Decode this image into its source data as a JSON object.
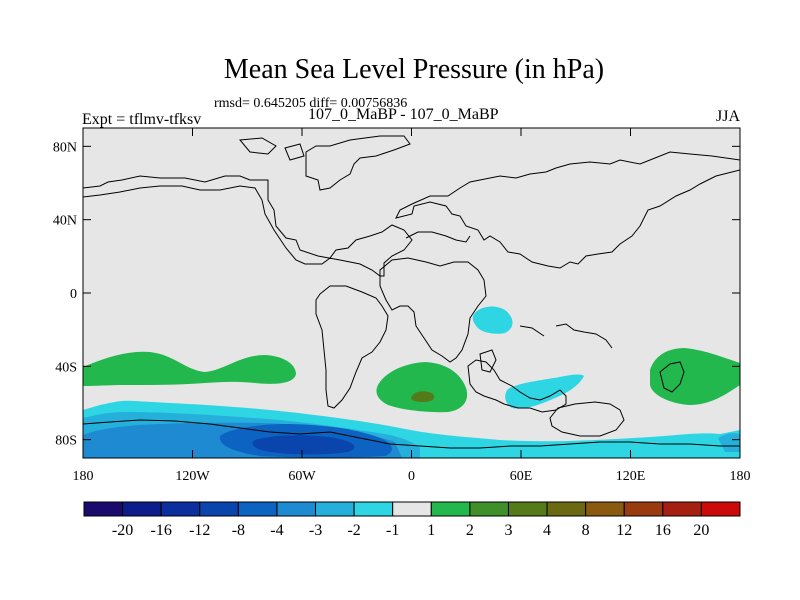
{
  "title": "Mean Sea Level Pressure (in hPa)",
  "stats": "rmsd= 0.645205 diff= 0.00756836",
  "left_label": "Expt = tflmv-tfksv",
  "center_label": "107_0_MaBP - 107_0_MaBP",
  "right_label": "JJA",
  "lat_ticks": [
    {
      "label": "80N",
      "lat": 80
    },
    {
      "label": "40N",
      "lat": 40
    },
    {
      "label": "0",
      "lat": 0
    },
    {
      "label": "40S",
      "lat": -40
    },
    {
      "label": "80S",
      "lat": -80
    }
  ],
  "lon_ticks": [
    {
      "label": "180",
      "lon": -180
    },
    {
      "label": "120W",
      "lon": -120
    },
    {
      "label": "60W",
      "lon": -60
    },
    {
      "label": "0",
      "lon": 0
    },
    {
      "label": "60E",
      "lon": 60
    },
    {
      "label": "120E",
      "lon": 120
    },
    {
      "label": "180",
      "lon": 180
    }
  ],
  "colorbar": {
    "colors": [
      "#1a0a6e",
      "#0c1d8c",
      "#0d2e9e",
      "#0a44ad",
      "#0d63c2",
      "#1d8ad1",
      "#25b0dc",
      "#2ed6e3",
      "#e6e6e6",
      "#22b84e",
      "#3f8f2a",
      "#557a19",
      "#6b6a12",
      "#8a5a10",
      "#9a3a0f",
      "#a52010",
      "#cc0a0a"
    ],
    "labels": [
      "-20",
      "-16",
      "-12",
      "-8",
      "-4",
      "-3",
      "-2",
      "-1",
      "1",
      "2",
      "3",
      "4",
      "8",
      "12",
      "16",
      "20"
    ]
  },
  "chart_data": {
    "type": "heatmap",
    "title": "Mean Sea Level Pressure (in hPa)",
    "projection": "cylindrical-equidistant",
    "lon_range": [
      -180,
      180
    ],
    "lat_range": [
      -90,
      90
    ],
    "contour_levels": [
      -20,
      -16,
      -12,
      -8,
      -4,
      -3,
      -2,
      -1,
      1,
      2,
      3,
      4,
      8,
      12,
      16,
      20
    ],
    "units": "hPa",
    "regions": [
      {
        "name": "Southern Ocean low band",
        "level_range": "-1 to -2",
        "lon": [
          -180,
          180
        ],
        "lat": [
          -90,
          -55
        ]
      },
      {
        "name": "South Pacific low core",
        "level_range": "-3 to -4",
        "lon": [
          -150,
          10
        ],
        "lat": [
          -90,
          -68
        ]
      },
      {
        "name": "South Pacific deepest low",
        "level_range": "-4 to -8",
        "lon": [
          -100,
          -20
        ],
        "lat": [
          -90,
          -75
        ]
      },
      {
        "name": "South Pacific high",
        "level_range": "1 to 2",
        "lon": [
          -180,
          -65
        ],
        "lat": [
          -48,
          -30
        ]
      },
      {
        "name": "South Atlantic high",
        "level_range": "1 to 3",
        "lon": [
          -15,
          35
        ],
        "lat": [
          -62,
          -35
        ]
      },
      {
        "name": "Indian Ocean high",
        "level_range": "1 to 2",
        "lon": [
          130,
          180
        ],
        "lat": [
          -58,
          -28
        ]
      },
      {
        "name": "Indian Ocean low",
        "level_range": "-1 to -2",
        "lon": [
          55,
          95
        ],
        "lat": [
          -60,
          -42
        ]
      },
      {
        "name": "Tropical Indian Ocean low",
        "level_range": "-1 to -2",
        "lon": [
          35,
          60
        ],
        "lat": [
          -20,
          -5
        ]
      }
    ]
  }
}
